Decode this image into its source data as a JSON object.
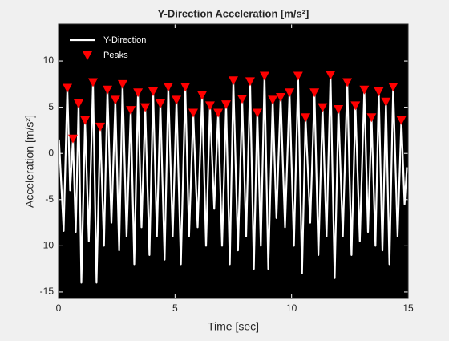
{
  "chart_data": {
    "type": "line",
    "title": "Y-Direction Acceleration [m/s²]",
    "xlabel": "Time [sec]",
    "ylabel": "Acceleration [m/s²]",
    "xlim": [
      0,
      15
    ],
    "xticks": [
      0,
      5,
      10,
      15
    ],
    "ylim": [
      -15.7,
      14
    ],
    "yticks": [
      -15,
      -10,
      -5,
      0,
      5,
      10
    ],
    "legend": "upper left",
    "series": [
      {
        "name": "Y-Direction",
        "color": "#ffffff",
        "x": [
          0.02,
          0.22,
          0.38,
          0.5,
          0.62,
          0.74,
          0.86,
          0.98,
          1.14,
          1.3,
          1.48,
          1.63,
          1.79,
          1.95,
          2.1,
          2.27,
          2.44,
          2.6,
          2.75,
          2.92,
          3.1,
          3.25,
          3.41,
          3.56,
          3.72,
          3.9,
          4.06,
          4.22,
          4.37,
          4.55,
          4.71,
          4.9,
          5.06,
          5.25,
          5.44,
          5.6,
          5.78,
          5.97,
          6.16,
          6.33,
          6.5,
          6.68,
          6.85,
          7.02,
          7.19,
          7.35,
          7.5,
          7.7,
          7.88,
          8.05,
          8.22,
          8.38,
          8.53,
          8.68,
          8.84,
          9.0,
          9.19,
          9.35,
          9.53,
          9.72,
          9.91,
          10.1,
          10.28,
          10.45,
          10.6,
          10.8,
          10.98,
          11.15,
          11.33,
          11.5,
          11.67,
          11.85,
          12.01,
          12.2,
          12.39,
          12.57,
          12.74,
          12.93,
          13.12,
          13.28,
          13.43,
          13.6,
          13.74,
          13.9,
          14.05,
          14.2,
          14.36,
          14.55,
          14.71,
          14.85,
          14.95
        ],
        "values": [
          1.5,
          -8.4,
          7.1,
          -4,
          1.6,
          -8.5,
          5.4,
          -14,
          3.6,
          -9.5,
          7.7,
          -14,
          2.9,
          -10,
          6.9,
          -7.5,
          5.8,
          -10.5,
          7.5,
          -9,
          4.7,
          -12,
          6.6,
          -8,
          5.0,
          -11,
          6.7,
          -9,
          5.4,
          -11.5,
          7.2,
          -9,
          5.8,
          -12,
          7.2,
          -9,
          4.4,
          -8,
          6.3,
          -10,
          5.2,
          -6,
          4.4,
          -10,
          5.3,
          -12,
          7.9,
          -10.5,
          5.9,
          -9,
          7.8,
          -12.5,
          4.4,
          -10,
          8.4,
          -12.5,
          5.8,
          -7,
          6.1,
          -8,
          6.6,
          -10,
          8.4,
          -13,
          3.9,
          -7.5,
          6.6,
          -11,
          5.0,
          -9,
          8.5,
          -13.5,
          4.8,
          -9,
          7.7,
          -11,
          5.2,
          -9.5,
          6.9,
          -8.5,
          3.9,
          -10,
          6.7,
          -10.5,
          5.6,
          -12,
          7.2,
          -9,
          3.6,
          -5.5,
          -1.5
        ]
      },
      {
        "name": "Peaks",
        "color": "#ff0000",
        "marker": "triangle-down",
        "x": [
          0.38,
          0.62,
          0.86,
          1.14,
          1.48,
          1.79,
          2.1,
          2.44,
          2.75,
          3.1,
          3.41,
          3.72,
          4.06,
          4.37,
          4.71,
          5.06,
          5.44,
          5.78,
          6.16,
          6.5,
          6.85,
          7.19,
          7.5,
          7.88,
          8.22,
          8.53,
          8.84,
          9.19,
          9.53,
          9.91,
          10.28,
          10.6,
          10.98,
          11.33,
          11.67,
          12.01,
          12.39,
          12.74,
          13.12,
          13.43,
          13.74,
          14.05,
          14.36,
          14.71
        ],
        "values": [
          7.1,
          1.6,
          5.4,
          3.6,
          7.7,
          2.9,
          6.9,
          5.8,
          7.5,
          4.7,
          6.6,
          5.0,
          6.7,
          5.4,
          7.2,
          5.8,
          7.2,
          4.4,
          6.3,
          5.2,
          4.4,
          5.3,
          7.9,
          5.9,
          7.8,
          4.4,
          8.4,
          5.8,
          6.1,
          6.6,
          8.4,
          3.9,
          6.6,
          5.0,
          8.5,
          4.8,
          7.7,
          5.2,
          6.9,
          3.9,
          6.7,
          5.6,
          7.2,
          3.6
        ]
      }
    ]
  }
}
